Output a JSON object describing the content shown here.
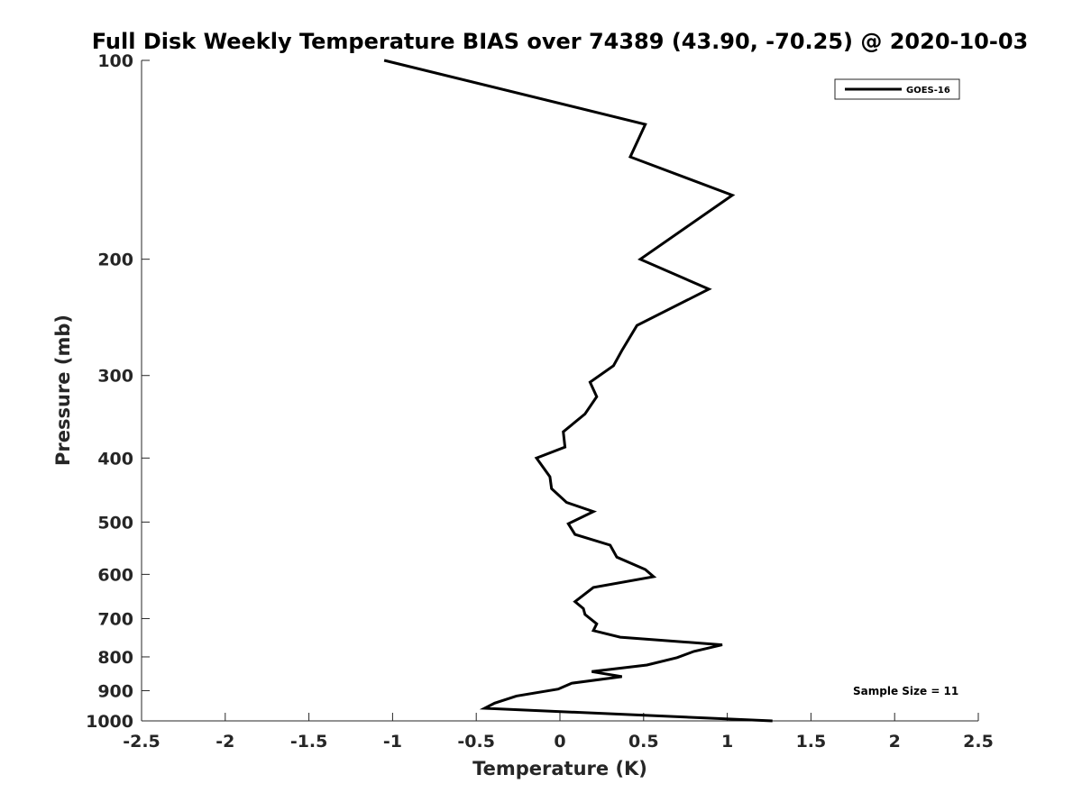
{
  "chart_data": {
    "type": "line",
    "title": "Full Disk Weekly Temperature BIAS over 74389 (43.90, -70.25) @ 2020-10-03",
    "xlabel": "Temperature (K)",
    "ylabel": "Pressure (mb)",
    "xlim": [
      -2.5,
      2.5
    ],
    "ylim": [
      100,
      1000
    ],
    "y_scale": "log",
    "y_reversed": true,
    "grid": false,
    "legend_position": "top-right",
    "x_ticks": [
      "-2.5",
      "-2",
      "-1.5",
      "-1",
      "-0.5",
      "0",
      "0.5",
      "1",
      "1.5",
      "2",
      "2.5"
    ],
    "y_ticks": [
      "100",
      "200",
      "300",
      "400",
      "500",
      "600",
      "700",
      "800",
      "900",
      "1000"
    ],
    "series": [
      {
        "name": "GOES-16",
        "color": "#000000",
        "x": [
          -1.05,
          0.51,
          0.42,
          1.03,
          0.48,
          0.89,
          0.46,
          0.37,
          0.32,
          0.18,
          0.22,
          0.15,
          0.02,
          0.03,
          -0.14,
          -0.06,
          -0.05,
          0.04,
          0.2,
          0.05,
          0.09,
          0.3,
          0.34,
          0.51,
          0.56,
          0.2,
          0.09,
          0.14,
          0.15,
          0.22,
          0.2,
          0.36,
          0.97,
          0.8,
          0.7,
          0.52,
          0.19,
          0.37,
          0.07,
          -0.01,
          -0.26,
          -0.39,
          -0.45,
          1.27
        ],
        "y": [
          100,
          125,
          140,
          160,
          200,
          222,
          252,
          275,
          290,
          307,
          323,
          343,
          365,
          385,
          400,
          427,
          445,
          467,
          482,
          503,
          522,
          542,
          565,
          590,
          605,
          628,
          660,
          676,
          690,
          713,
          730,
          747,
          767,
          785,
          802,
          823,
          842,
          857,
          877,
          895,
          917,
          940,
          957,
          1000
        ]
      }
    ],
    "annotation": "Sample Size = 11"
  }
}
